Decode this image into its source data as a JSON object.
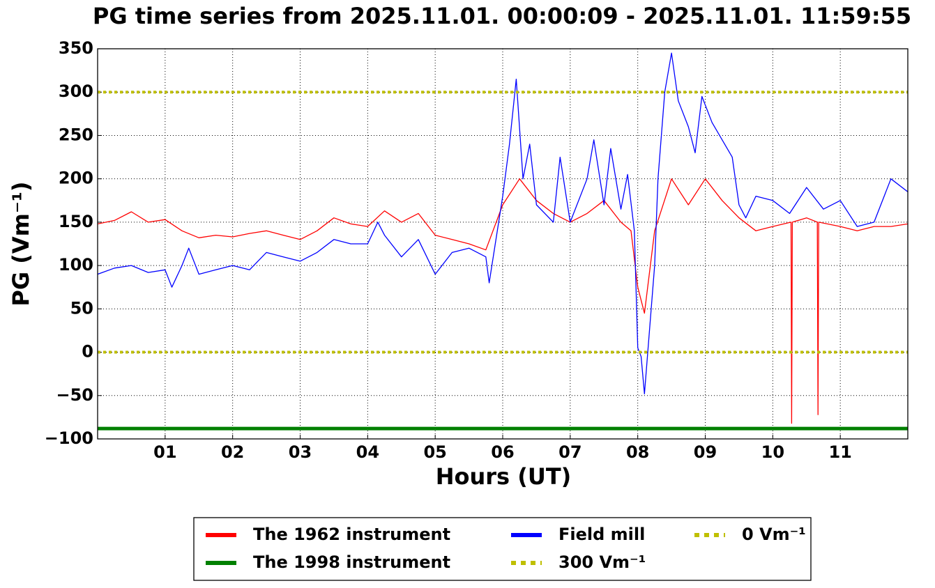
{
  "chart_data": {
    "type": "line",
    "title": "PG time series from 2025.11.01. 00:00:09 - 2025.11.01. 11:59:55",
    "x_label": "Hours (UT)",
    "y_label": "PG (Vm⁻¹)",
    "xlim": [
      0,
      12
    ],
    "xticks": [
      {
        "value": 1,
        "label": "01"
      },
      {
        "value": 2,
        "label": "02"
      },
      {
        "value": 3,
        "label": "03"
      },
      {
        "value": 4,
        "label": "04"
      },
      {
        "value": 5,
        "label": "05"
      },
      {
        "value": 6,
        "label": "06"
      },
      {
        "value": 7,
        "label": "07"
      },
      {
        "value": 8,
        "label": "08"
      },
      {
        "value": 9,
        "label": "09"
      },
      {
        "value": 10,
        "label": "10"
      },
      {
        "value": 11,
        "label": "11"
      }
    ],
    "ylim": [
      -100,
      350
    ],
    "yticks": [
      {
        "value": -100,
        "label": "−100"
      },
      {
        "value": -50,
        "label": "−50"
      },
      0,
      50,
      100,
      150,
      200,
      250,
      300,
      350
    ],
    "grid": true,
    "legend": "below",
    "series": [
      {
        "name": "The 1962 instrument",
        "color": "#ff0000",
        "x": [
          0,
          0.25,
          0.5,
          0.75,
          1,
          1.25,
          1.5,
          1.75,
          2,
          2.25,
          2.5,
          2.75,
          3,
          3.25,
          3.5,
          3.75,
          4,
          4.25,
          4.5,
          4.75,
          5,
          5.25,
          5.5,
          5.75,
          6,
          6.25,
          6.5,
          6.75,
          7,
          7.25,
          7.5,
          7.75,
          7.9,
          8,
          8.1,
          8.25,
          8.5,
          8.75,
          9,
          9.25,
          9.5,
          9.75,
          10,
          10.27,
          10.28,
          10.29,
          10.5,
          10.66,
          10.67,
          10.68,
          11,
          11.25,
          11.5,
          11.75,
          12
        ],
        "values": [
          148,
          152,
          162,
          150,
          153,
          140,
          132,
          135,
          133,
          137,
          140,
          135,
          130,
          140,
          155,
          148,
          145,
          163,
          150,
          160,
          135,
          130,
          125,
          118,
          170,
          200,
          175,
          160,
          150,
          160,
          175,
          150,
          140,
          75,
          45,
          140,
          200,
          170,
          200,
          175,
          155,
          140,
          145,
          150,
          -82,
          150,
          155,
          150,
          -72,
          150,
          145,
          140,
          145,
          145,
          148
        ]
      },
      {
        "name": "The 1998 instrument",
        "color": "#008000",
        "x": [
          0,
          12
        ],
        "values": [
          -88,
          -88
        ]
      },
      {
        "name": "Field mill",
        "color": "#0000ff",
        "x": [
          0,
          0.25,
          0.5,
          0.75,
          1,
          1.1,
          1.25,
          1.35,
          1.5,
          1.75,
          2,
          2.25,
          2.5,
          2.75,
          3,
          3.25,
          3.5,
          3.75,
          4,
          4.15,
          4.25,
          4.5,
          4.75,
          5,
          5.25,
          5.5,
          5.75,
          5.8,
          6,
          6.1,
          6.2,
          6.3,
          6.4,
          6.5,
          6.75,
          6.85,
          7,
          7.25,
          7.35,
          7.5,
          7.6,
          7.75,
          7.85,
          7.95,
          8,
          8.05,
          8.1,
          8.25,
          8.3,
          8.4,
          8.5,
          8.6,
          8.75,
          8.85,
          8.95,
          9.1,
          9.25,
          9.4,
          9.5,
          9.6,
          9.75,
          10,
          10.25,
          10.5,
          10.75,
          11,
          11.25,
          11.5,
          11.75,
          12
        ],
        "values": [
          90,
          97,
          100,
          92,
          95,
          75,
          100,
          120,
          90,
          95,
          100,
          95,
          115,
          110,
          105,
          115,
          130,
          125,
          125,
          150,
          135,
          110,
          130,
          90,
          115,
          120,
          110,
          80,
          180,
          240,
          315,
          200,
          240,
          170,
          150,
          225,
          150,
          200,
          245,
          170,
          235,
          165,
          205,
          140,
          5,
          -5,
          -48,
          100,
          200,
          300,
          345,
          290,
          260,
          230,
          295,
          265,
          245,
          225,
          170,
          155,
          180,
          175,
          160,
          190,
          165,
          175,
          145,
          150,
          200,
          185
        ]
      },
      {
        "name": "300 Vm⁻¹",
        "color": "#bfbf00",
        "style": "dotted",
        "value": 300
      },
      {
        "name": "0 Vm⁻¹",
        "color": "#bfbf00",
        "style": "dotted",
        "value": 0
      }
    ]
  }
}
